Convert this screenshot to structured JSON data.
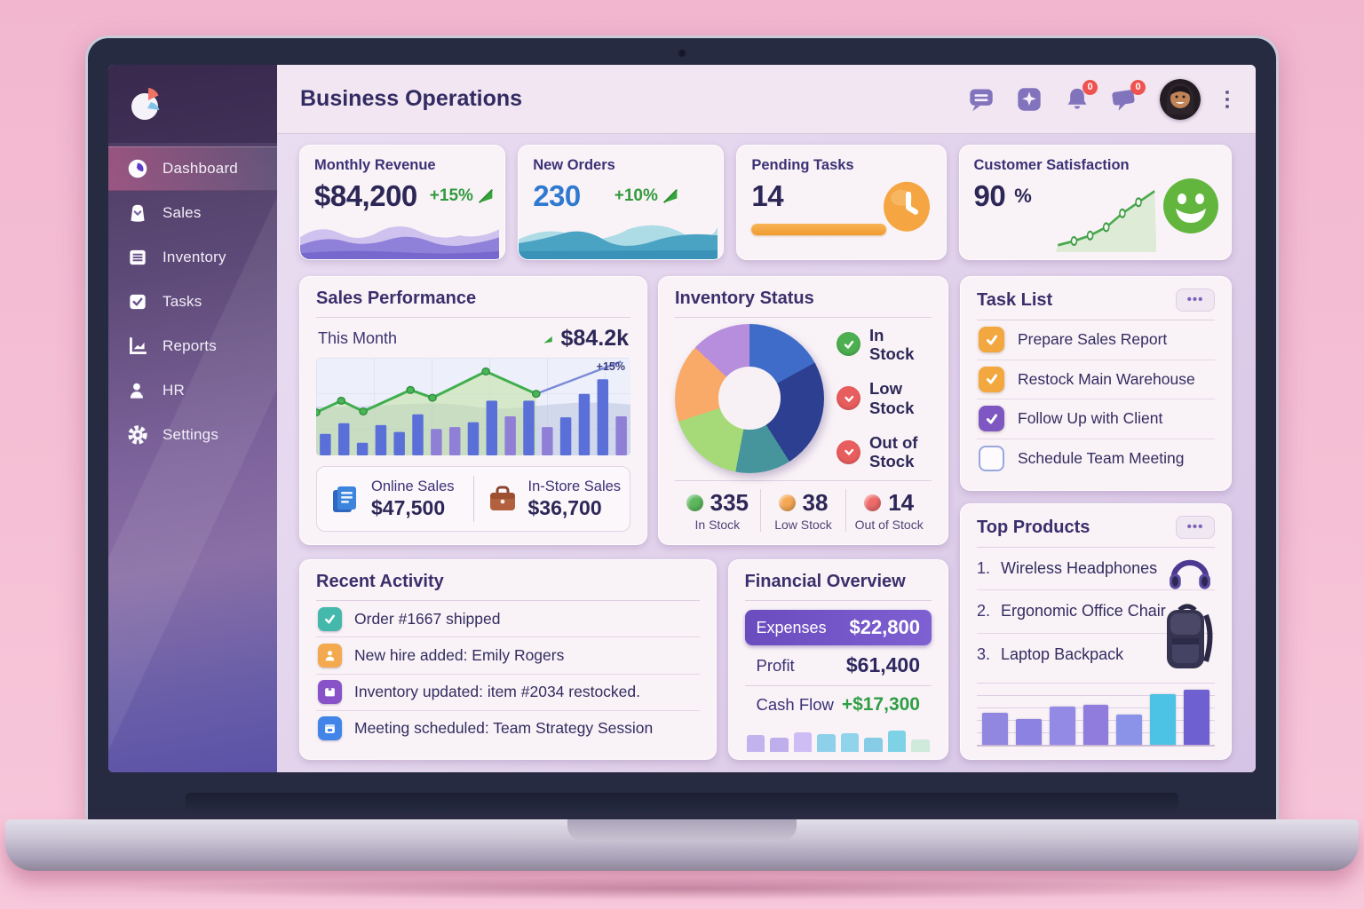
{
  "header": {
    "title": "Business Operations",
    "icons": [
      {
        "name": "chat-icon"
      },
      {
        "name": "apps-icon"
      },
      {
        "name": "bell-icon",
        "badge": "0"
      },
      {
        "name": "announcement-icon",
        "badge": "0"
      }
    ]
  },
  "sidebar": {
    "items": [
      {
        "label": "Dashboard",
        "icon": "dashboard-pie-icon",
        "active": true
      },
      {
        "label": "Sales",
        "icon": "sales-bag-icon",
        "active": false
      },
      {
        "label": "Inventory",
        "icon": "inventory-list-icon",
        "active": false
      },
      {
        "label": "Tasks",
        "icon": "tasks-check-icon",
        "active": false
      },
      {
        "label": "Reports",
        "icon": "reports-chart-icon",
        "active": false
      },
      {
        "label": "HR",
        "icon": "hr-person-icon",
        "active": false
      },
      {
        "label": "Settings",
        "icon": "settings-gear-icon",
        "active": false
      }
    ]
  },
  "kpis": {
    "monthly_revenue": {
      "label": "Monthly Revenue",
      "value": "$84,200",
      "delta": "+15%"
    },
    "new_orders": {
      "label": "New Orders",
      "value": "230",
      "delta": "+10%"
    },
    "pending_tasks": {
      "label": "Pending Tasks",
      "value": "14"
    },
    "customer_satisfaction": {
      "label": "Customer Satisfaction",
      "value": "90",
      "unit": "%"
    }
  },
  "sales_performance": {
    "title": "Sales Performance",
    "period_label": "This Month",
    "period_value": "$84.2k",
    "trend_label": "+15%",
    "online": {
      "label": "Online Sales",
      "value": "$47,500"
    },
    "in_store": {
      "label": "In-Store Sales",
      "value": "$36,700"
    }
  },
  "inventory_status": {
    "title": "Inventory Status",
    "legend": [
      {
        "label": "In Stock",
        "color": "#4caf50"
      },
      {
        "label": "Low Stock",
        "color": "#e85d5d"
      },
      {
        "label": "Out of Stock",
        "color": "#e85d5d"
      }
    ],
    "stats": [
      {
        "value": "335",
        "label": "In Stock",
        "color": "#5cb85c"
      },
      {
        "value": "38",
        "label": "Low Stock",
        "color": "#f5a854"
      },
      {
        "value": "14",
        "label": "Out of Stock",
        "color": "#ee6a6a"
      }
    ]
  },
  "task_list": {
    "title": "Task List",
    "menu_label": "•••",
    "items": [
      {
        "label": "Prepare Sales Report",
        "checked": true,
        "check_color": "#f2a73f"
      },
      {
        "label": "Restock Main Warehouse",
        "checked": true,
        "check_color": "#f2a73f"
      },
      {
        "label": "Follow Up with Client",
        "checked": true,
        "check_color": "#7e57c2"
      },
      {
        "label": "Schedule Team Meeting",
        "checked": false,
        "check_color": ""
      }
    ]
  },
  "recent_activity": {
    "title": "Recent Activity",
    "items": [
      {
        "text": "Order #1667 shipped",
        "icon": "check-icon",
        "color": "#45b8ac"
      },
      {
        "text": "New hire added: Emily Rogers",
        "icon": "person-icon",
        "color": "#f3aa4e"
      },
      {
        "text": "Inventory updated: item #2034 restocked.",
        "icon": "box-icon",
        "color": "#8853c8"
      },
      {
        "text": "Meeting scheduled: Team Strategy Session",
        "icon": "calendar-icon",
        "color": "#4285e8"
      }
    ]
  },
  "financial_overview": {
    "title": "Financial Overview",
    "expenses_label": "Expenses",
    "expenses_value": "$22,800",
    "profit_label": "Profit",
    "profit_value": "$61,400",
    "cashflow_label": "Cash Flow",
    "cashflow_value": "+$17,300"
  },
  "top_products": {
    "title": "Top Products",
    "menu_label": "•••",
    "items": [
      {
        "rank": "1.",
        "name": "Wireless Headphones",
        "icon": "headphones-icon"
      },
      {
        "rank": "2.",
        "name": "Ergonomic Office Chair",
        "icon": "backpack-icon"
      },
      {
        "rank": "3.",
        "name": "Laptop Backpack",
        "icon": ""
      }
    ]
  },
  "chart_data": [
    {
      "id": "sales_performance_chart",
      "type": "combo",
      "title": "Sales Performance - This Month",
      "bars": [
        22,
        33,
        13,
        31,
        24,
        42,
        27,
        29,
        34,
        56,
        40,
        56,
        29,
        39,
        63,
        78,
        40
      ],
      "bar_colors": [
        "b",
        "b",
        "b",
        "b",
        "b",
        "b",
        "p",
        "p",
        "b",
        "b",
        "p",
        "b",
        "p",
        "b",
        "b",
        "b",
        "p"
      ],
      "line": [
        [
          0,
          44
        ],
        [
          8,
          56
        ],
        [
          15,
          45
        ],
        [
          30,
          67
        ],
        [
          37,
          59
        ],
        [
          54,
          86
        ],
        [
          70,
          63
        ]
      ],
      "trend": [
        [
          70,
          63
        ],
        [
          97,
          96
        ]
      ],
      "trend_label": "+15%",
      "grid": true,
      "legend": "none",
      "ylim": [
        0,
        100
      ]
    },
    {
      "id": "inventory_donut",
      "type": "pie",
      "title": "Inventory Status",
      "segments": [
        {
          "label": "segment-1",
          "value": 17,
          "color": "#3e6cc8"
        },
        {
          "label": "segment-2",
          "value": 24,
          "color": "#2c3f90"
        },
        {
          "label": "segment-3",
          "value": 12,
          "color": "#46959c"
        },
        {
          "label": "segment-4",
          "value": 17,
          "color": "#a6da78"
        },
        {
          "label": "segment-5",
          "value": 17,
          "color": "#f9aa68"
        },
        {
          "label": "segment-6",
          "value": 13,
          "color": "#b78ddd"
        }
      ]
    },
    {
      "id": "customer_satisfaction_spark",
      "type": "line",
      "title": "Customer Satisfaction trend",
      "points": [
        [
          2,
          10
        ],
        [
          18,
          16
        ],
        [
          34,
          24
        ],
        [
          50,
          36
        ],
        [
          66,
          56
        ],
        [
          82,
          72
        ],
        [
          98,
          88
        ]
      ],
      "ylim": [
        0,
        100
      ]
    },
    {
      "id": "top_products_chart",
      "type": "bar",
      "title": "Top Products sales",
      "values": [
        52,
        42,
        62,
        65,
        48,
        82,
        88
      ],
      "colors": [
        "#9187e0",
        "#8b82e2",
        "#938ae6",
        "#8f7cdc",
        "#8b93e8",
        "#4cc2e4",
        "#6f60d2"
      ],
      "ylim": [
        0,
        100
      ]
    },
    {
      "id": "financial_chart",
      "type": "bar",
      "title": "Cash flow mini chart",
      "values": [
        58,
        50,
        70,
        62,
        66,
        50,
        74,
        44
      ],
      "colors": [
        "#c2b2ee",
        "#bfaeec",
        "#cdbdf4",
        "#8cd0ea",
        "#90d4ec",
        "#86cce6",
        "#7ed2e6",
        "#cfe9da"
      ],
      "ylim": [
        0,
        100
      ]
    }
  ]
}
